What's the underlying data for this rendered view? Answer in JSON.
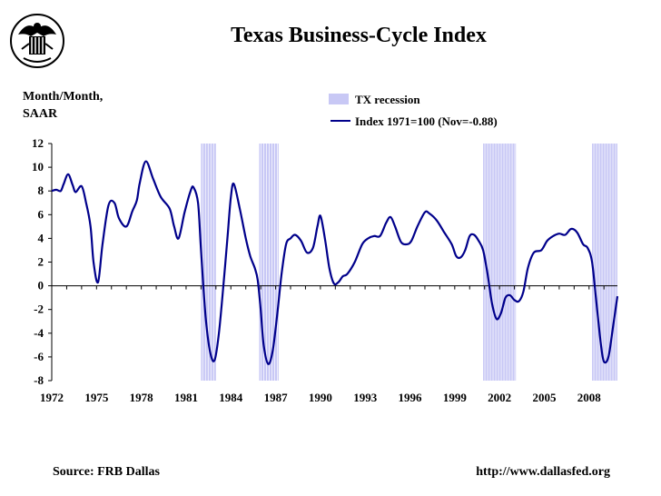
{
  "title": "Texas Business-Cycle Index",
  "y_unit_label": "Month/Month,\nSAAR",
  "source": "Source: FRB Dallas",
  "url": "http://www.dallasfed.org",
  "logo_icon": "federal-reserve-eagle-seal-icon",
  "colors": {
    "line": "#00008b",
    "recession": "#c8c8f5",
    "axis": "#000000"
  },
  "chart_data": {
    "type": "line",
    "title": "Texas Business-Cycle Index",
    "ylabel": "Month/Month, SAAR",
    "xlabel": "",
    "ylim": [
      -8,
      12
    ],
    "xlim": [
      1972,
      2009.9
    ],
    "yticks": [
      12,
      10,
      8,
      6,
      4,
      2,
      0,
      -2,
      -4,
      -6,
      -8
    ],
    "xticks": [
      1972,
      1975,
      1978,
      1981,
      1984,
      1987,
      1990,
      1993,
      1996,
      1999,
      2002,
      2005,
      2008
    ],
    "grid": false,
    "legend_position": "top-right",
    "legend": [
      {
        "label": "TX recession",
        "kind": "band"
      },
      {
        "label": "Index 1971=100 (Nov=-0.88)",
        "kind": "line"
      }
    ],
    "recessions": [
      {
        "start": 1982.0,
        "end": 1983.0
      },
      {
        "start": 1985.9,
        "end": 1987.2
      },
      {
        "start": 2000.9,
        "end": 2003.1
      },
      {
        "start": 2008.2,
        "end": 2009.9
      }
    ],
    "series": [
      {
        "name": "Index 1971=100 (Nov=-0.88)",
        "x": [
          1972.0,
          1972.3,
          1972.6,
          1972.8,
          1973.1,
          1973.4,
          1973.6,
          1974.0,
          1974.3,
          1974.6,
          1974.8,
          1975.1,
          1975.4,
          1975.8,
          1976.2,
          1976.5,
          1977.0,
          1977.4,
          1977.7,
          1977.9,
          1978.3,
          1978.8,
          1979.3,
          1979.9,
          1980.2,
          1980.5,
          1980.9,
          1981.3,
          1981.5,
          1981.8,
          1982.0,
          1982.3,
          1982.6,
          1982.9,
          1983.2,
          1983.5,
          1983.8,
          1984.0,
          1984.2,
          1984.6,
          1985.0,
          1985.3,
          1985.6,
          1985.8,
          1986.0,
          1986.2,
          1986.5,
          1986.8,
          1987.1,
          1987.4,
          1987.7,
          1988.0,
          1988.3,
          1988.7,
          1989.1,
          1989.5,
          1989.8,
          1990.0,
          1990.3,
          1990.6,
          1990.9,
          1991.2,
          1991.5,
          1991.8,
          1992.3,
          1992.8,
          1993.2,
          1993.6,
          1994.0,
          1994.4,
          1994.7,
          1995.0,
          1995.4,
          1995.8,
          1996.1,
          1996.5,
          1997.0,
          1997.3,
          1997.8,
          1998.3,
          1998.8,
          1999.1,
          1999.4,
          1999.7,
          2000.0,
          2000.3,
          2000.6,
          2000.9,
          2001.2,
          2001.5,
          2001.8,
          2002.1,
          2002.4,
          2002.7,
          2003.0,
          2003.3,
          2003.6,
          2003.9,
          2004.3,
          2004.8,
          2005.2,
          2005.6,
          2006.0,
          2006.4,
          2006.8,
          2007.2,
          2007.6,
          2007.9,
          2008.2,
          2008.5,
          2008.8,
          2009.0,
          2009.3,
          2009.6,
          2009.9
        ],
        "y": [
          8.0,
          8.1,
          8.0,
          8.6,
          9.4,
          8.5,
          7.9,
          8.4,
          7.0,
          5.0,
          2.0,
          0.3,
          3.5,
          6.8,
          7.0,
          5.7,
          5.0,
          6.3,
          7.2,
          8.7,
          10.5,
          9.0,
          7.5,
          6.5,
          5.0,
          4.0,
          6.2,
          8.0,
          8.3,
          7.0,
          3.0,
          -2.5,
          -5.5,
          -6.3,
          -4.0,
          0.0,
          4.5,
          7.5,
          8.6,
          6.5,
          4.0,
          2.5,
          1.5,
          0.5,
          -2.0,
          -5.0,
          -6.6,
          -5.5,
          -2.5,
          1.0,
          3.5,
          4.0,
          4.3,
          3.8,
          2.8,
          3.2,
          5.0,
          5.9,
          4.0,
          1.5,
          0.2,
          0.3,
          0.8,
          1.0,
          2.0,
          3.5,
          4.0,
          4.2,
          4.2,
          5.3,
          5.8,
          5.0,
          3.7,
          3.5,
          3.8,
          5.0,
          6.2,
          6.1,
          5.5,
          4.5,
          3.5,
          2.5,
          2.4,
          3.0,
          4.2,
          4.3,
          3.8,
          3.0,
          1.0,
          -1.5,
          -2.8,
          -2.3,
          -1.0,
          -0.8,
          -1.2,
          -1.3,
          -0.5,
          1.5,
          2.8,
          3.0,
          3.8,
          4.2,
          4.4,
          4.3,
          4.8,
          4.5,
          3.5,
          3.2,
          2.0,
          -1.5,
          -5.0,
          -6.4,
          -6.0,
          -3.5,
          -0.88
        ]
      }
    ]
  }
}
